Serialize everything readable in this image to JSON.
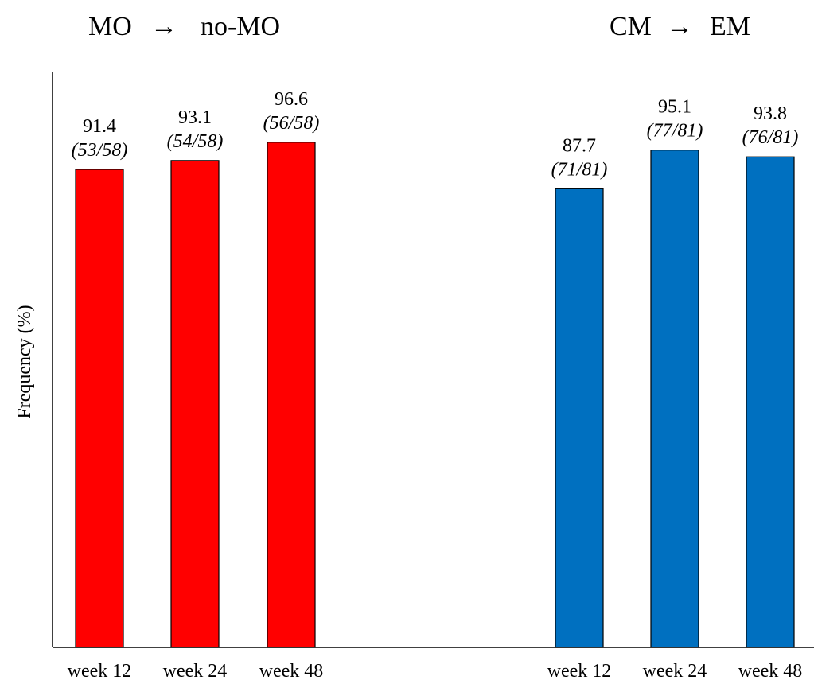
{
  "chart_data": {
    "type": "bar",
    "ylabel": "Frequency (%)",
    "ylim": [
      0,
      100
    ],
    "grid": false,
    "groups": [
      {
        "title_left": "MO",
        "arrow": "→",
        "title_right": "no-MO",
        "color": "#ff0000",
        "categories": [
          "week 12",
          "week 24",
          "week 48"
        ],
        "values": [
          91.4,
          93.1,
          96.6
        ],
        "value_labels": [
          "91.4",
          "93.1",
          "96.6"
        ],
        "fractions": [
          "(53/58)",
          "(54/58)",
          "(56/58)"
        ]
      },
      {
        "title_left": "CM",
        "arrow": "→",
        "title_right": "EM",
        "color": "#0070c0",
        "categories": [
          "week 12",
          "week 24",
          "week 48"
        ],
        "values": [
          87.7,
          95.1,
          93.8
        ],
        "value_labels": [
          "87.7",
          "95.1",
          "93.8"
        ],
        "fractions": [
          "(71/81)",
          "(77/81)",
          "(76/81)"
        ]
      }
    ]
  }
}
